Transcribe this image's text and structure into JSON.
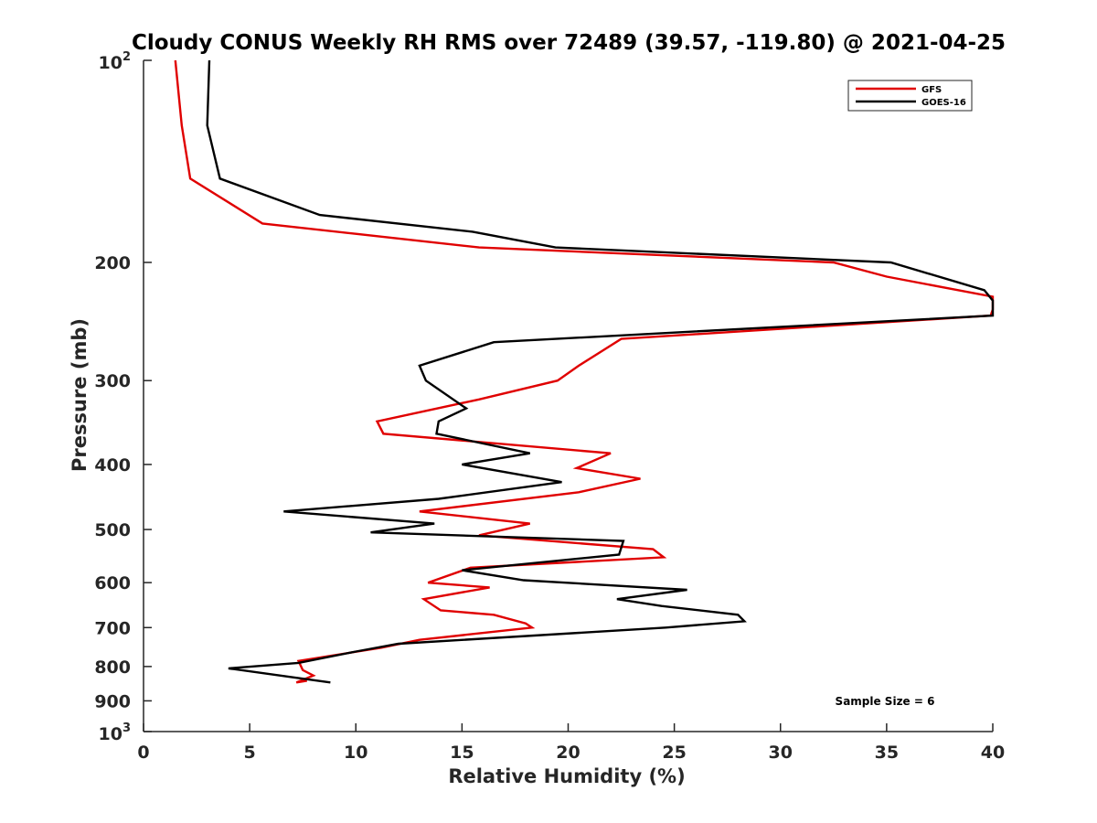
{
  "chart_data": {
    "type": "line",
    "title": "Cloudy CONUS Weekly RH RMS over 72489 (39.57, -119.80) @ 2021-04-25",
    "xlabel": "Relative Humidity (%)",
    "ylabel": "Pressure (mb)",
    "xlim": [
      0,
      40
    ],
    "ylim": [
      100,
      1000
    ],
    "yscale": "log",
    "y_reversed": true,
    "grid": false,
    "legend_position": "top-right",
    "x_ticks": [
      0,
      5,
      10,
      15,
      20,
      25,
      30,
      35,
      40
    ],
    "y_ticks": [
      {
        "value": 100,
        "label": "10",
        "exp": "2"
      },
      {
        "value": 200,
        "label": "200"
      },
      {
        "value": 300,
        "label": "300"
      },
      {
        "value": 400,
        "label": "400"
      },
      {
        "value": 500,
        "label": "500"
      },
      {
        "value": 600,
        "label": "600"
      },
      {
        "value": 700,
        "label": "700"
      },
      {
        "value": 800,
        "label": "800"
      },
      {
        "value": 900,
        "label": "900"
      },
      {
        "value": 1000,
        "label": "10",
        "exp": "3"
      }
    ],
    "annotation": "Sample Size = 6",
    "series": [
      {
        "name": "GFS",
        "color": "#e00000",
        "points": [
          [
            1.5,
            100
          ],
          [
            1.8,
            125
          ],
          [
            2.2,
            150
          ],
          [
            5.6,
            175
          ],
          [
            15.8,
            190
          ],
          [
            32.5,
            200
          ],
          [
            35.0,
            210
          ],
          [
            40.0,
            225
          ],
          [
            40.0,
            235
          ],
          [
            39.9,
            240
          ],
          [
            22.5,
            260
          ],
          [
            20.5,
            285
          ],
          [
            19.5,
            300
          ],
          [
            15.8,
            320
          ],
          [
            11.0,
            345
          ],
          [
            11.3,
            360
          ],
          [
            22.0,
            385
          ],
          [
            20.4,
            405
          ],
          [
            23.4,
            420
          ],
          [
            20.5,
            440
          ],
          [
            13.0,
            470
          ],
          [
            18.2,
            490
          ],
          [
            15.8,
            510
          ],
          [
            24.0,
            535
          ],
          [
            24.5,
            550
          ],
          [
            15.4,
            570
          ],
          [
            13.4,
            600
          ],
          [
            16.3,
            610
          ],
          [
            13.2,
            635
          ],
          [
            14.0,
            660
          ],
          [
            16.5,
            670
          ],
          [
            18.0,
            690
          ],
          [
            18.3,
            700
          ],
          [
            13.0,
            730
          ],
          [
            11.2,
            750
          ],
          [
            7.3,
            785
          ],
          [
            7.5,
            810
          ],
          [
            8.0,
            825
          ],
          [
            7.2,
            845
          ],
          [
            7.7,
            840
          ]
        ]
      },
      {
        "name": "GOES-16",
        "color": "#000000",
        "points": [
          [
            3.1,
            100
          ],
          [
            3.0,
            125
          ],
          [
            3.6,
            150
          ],
          [
            8.3,
            170
          ],
          [
            15.5,
            180
          ],
          [
            19.4,
            190
          ],
          [
            35.2,
            200
          ],
          [
            39.6,
            220
          ],
          [
            40.0,
            228
          ],
          [
            40.0,
            240
          ],
          [
            16.5,
            263
          ],
          [
            13.0,
            285
          ],
          [
            13.3,
            300
          ],
          [
            15.2,
            330
          ],
          [
            13.9,
            345
          ],
          [
            13.8,
            360
          ],
          [
            18.2,
            385
          ],
          [
            15.0,
            400
          ],
          [
            19.7,
            425
          ],
          [
            13.9,
            450
          ],
          [
            6.6,
            470
          ],
          [
            13.7,
            490
          ],
          [
            10.7,
            505
          ],
          [
            22.6,
            520
          ],
          [
            22.4,
            545
          ],
          [
            15.0,
            575
          ],
          [
            17.9,
            595
          ],
          [
            25.6,
            615
          ],
          [
            22.3,
            635
          ],
          [
            24.4,
            650
          ],
          [
            28.0,
            670
          ],
          [
            28.3,
            685
          ],
          [
            24.6,
            700
          ],
          [
            12.0,
            740
          ],
          [
            10.0,
            760
          ],
          [
            7.3,
            790
          ],
          [
            4.0,
            805
          ],
          [
            7.0,
            830
          ],
          [
            8.8,
            845
          ]
        ]
      }
    ]
  }
}
